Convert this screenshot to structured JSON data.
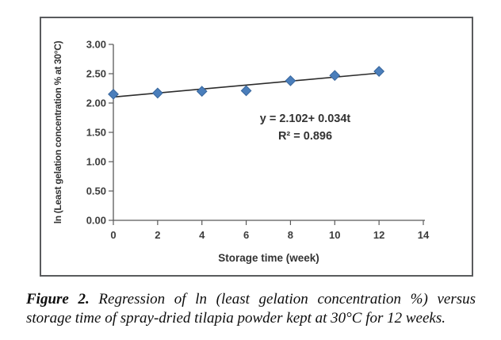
{
  "figure": {
    "caption": {
      "label": "Figure 2.",
      "line1_rest": "Regression of ln (least gelation concentration %) versus",
      "line2": "storage time of spray-dried tilapia powder kept at 30°C for 12 weeks."
    }
  },
  "chart_data": {
    "type": "scatter",
    "title": "",
    "xlabel": "Storage time (week)",
    "ylabel": "ln (Least gelation concentration  % at 30°C)",
    "x": [
      0,
      2,
      4,
      6,
      8,
      10,
      12
    ],
    "y": [
      2.15,
      2.17,
      2.2,
      2.21,
      2.38,
      2.47,
      2.54
    ],
    "xlim": [
      0,
      14
    ],
    "ylim": [
      0,
      3
    ],
    "x_ticks": [
      0,
      2,
      4,
      6,
      8,
      10,
      12,
      14
    ],
    "y_ticks": [
      0,
      0.5,
      1,
      1.5,
      2,
      2.5,
      3
    ],
    "grid": false,
    "legend": "none",
    "trendline": {
      "intercept": 2.102,
      "slope": 0.034,
      "x_start": 0,
      "x_end": 12
    },
    "equation_label": "y = 2.102+ 0.034t",
    "r2_label": "R² = 0.896",
    "marker": "diamond",
    "marker_color": "#4a7ebb",
    "marker_edge_color": "#38669c",
    "trendline_color": "#2c2c2c",
    "axis_color": "#595959",
    "text_color": "#3d3d3d"
  }
}
